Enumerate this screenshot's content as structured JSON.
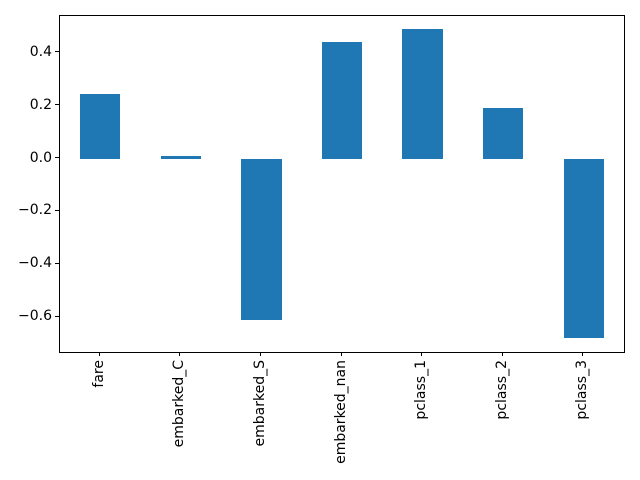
{
  "chart_data": {
    "type": "bar",
    "title": "",
    "xlabel": "",
    "ylabel": "",
    "categories": [
      "fare",
      "embarked_C",
      "embarked_S",
      "embarked_nan",
      "pclass_1",
      "pclass_2",
      "pclass_3"
    ],
    "values": [
      0.245,
      0.01,
      -0.61,
      0.44,
      0.49,
      0.19,
      -0.68
    ],
    "ylim": [
      -0.732,
      0.54
    ],
    "yticks": [
      {
        "value": 0.4,
        "label": "0.4"
      },
      {
        "value": 0.2,
        "label": "0.2"
      },
      {
        "value": 0.0,
        "label": "0.0"
      },
      {
        "value": -0.2,
        "label": "−0.2"
      },
      {
        "value": -0.4,
        "label": "−0.4"
      },
      {
        "value": -0.6,
        "label": "−0.6"
      }
    ],
    "x_tick_rotation": 90,
    "bar_width_fraction": 0.5,
    "bar_color": "#1f77b4",
    "spine_color": "#000000",
    "background_color": "#ffffff",
    "grid": false,
    "legend": null
  }
}
